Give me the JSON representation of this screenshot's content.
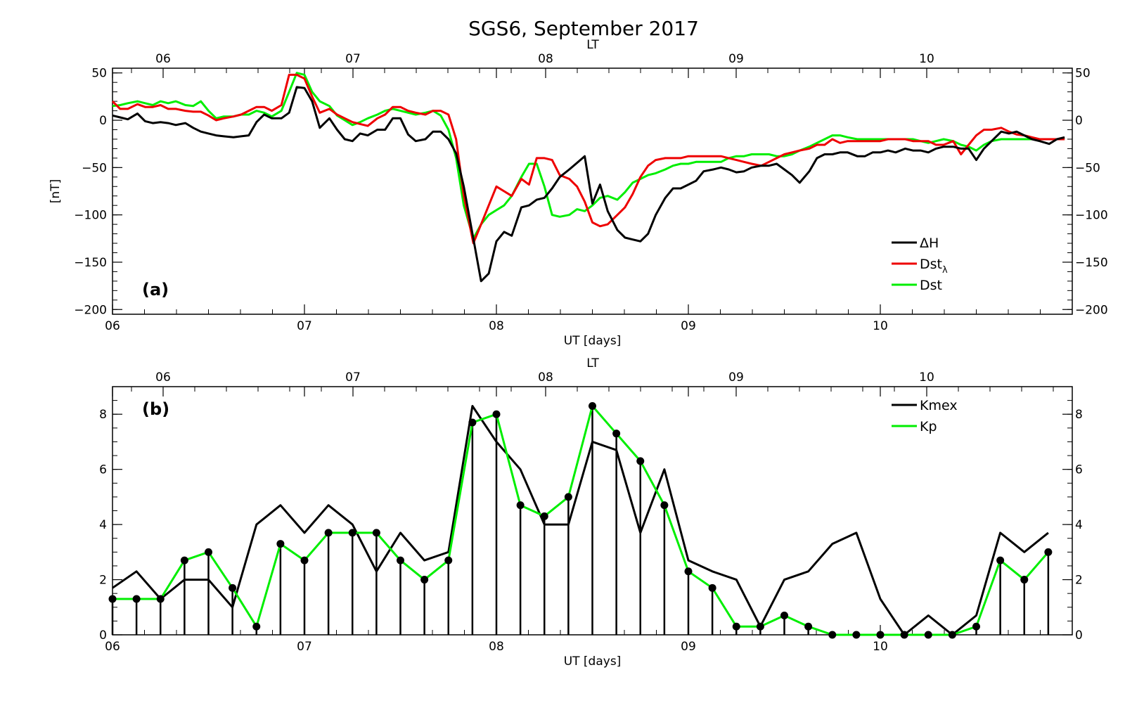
{
  "title": "SGS6, September 2017",
  "chart_data": [
    {
      "type": "line",
      "panel_label": "(a)",
      "xlabel": "UT [days]",
      "top_axis_label": "LT",
      "ylabel": "[nT]",
      "x_unit": "days (UT, September 2017)",
      "xlim": [
        6,
        11
      ],
      "ylim": [
        -205,
        55
      ],
      "x_tick_labels": [
        "06",
        "07",
        "08",
        "09",
        "10"
      ],
      "top_tick_labels": [
        "06",
        "07",
        "08",
        "09",
        "10"
      ],
      "y_tick_labels": [
        "50",
        "0",
        "−50",
        "−100",
        "−150",
        "−200"
      ],
      "y_ticks": [
        50,
        0,
        -50,
        -100,
        -150,
        -200
      ],
      "right_tick_labels": [
        "50",
        "0",
        "−50",
        "−100",
        "−150",
        "−200"
      ],
      "legend_position": "bottom-right",
      "legend": [
        "ΔH",
        "Dst",
        "Dst"
      ],
      "legend_subscript": "λ",
      "series": [
        {
          "name": "ΔH",
          "color": "#000000",
          "x": [
            6.0,
            6.04,
            6.08,
            6.13,
            6.17,
            6.21,
            6.25,
            6.29,
            6.33,
            6.38,
            6.42,
            6.46,
            6.5,
            6.54,
            6.58,
            6.63,
            6.67,
            6.71,
            6.75,
            6.79,
            6.83,
            6.88,
            6.92,
            6.96,
            7.0,
            7.04,
            7.08,
            7.13,
            7.17,
            7.21,
            7.25,
            7.29,
            7.33,
            7.38,
            7.42,
            7.46,
            7.5,
            7.54,
            7.58,
            7.63,
            7.67,
            7.71,
            7.75,
            7.79,
            7.83,
            7.88,
            7.92,
            7.96,
            8.0,
            8.04,
            8.08,
            8.13,
            8.17,
            8.21,
            8.25,
            8.29,
            8.33,
            8.38,
            8.42,
            8.46,
            8.5,
            8.54,
            8.58,
            8.63,
            8.67,
            8.71,
            8.75,
            8.79,
            8.83,
            8.88,
            8.92,
            8.96,
            9.0,
            9.04,
            9.08,
            9.13,
            9.17,
            9.21,
            9.25,
            9.29,
            9.33,
            9.38,
            9.42,
            9.46,
            9.5,
            9.54,
            9.58,
            9.63,
            9.67,
            9.71,
            9.75,
            9.79,
            9.83,
            9.88,
            9.92,
            9.96,
            10.0,
            10.04,
            10.08,
            10.13,
            10.17,
            10.21,
            10.25,
            10.29,
            10.33,
            10.38,
            10.42,
            10.46,
            10.5,
            10.54,
            10.58,
            10.63,
            10.67,
            10.71,
            10.75,
            10.79,
            10.83,
            10.88,
            10.92,
            10.96
          ],
          "y": [
            5,
            3,
            1,
            7,
            -1,
            -3,
            -2,
            -3,
            -5,
            -3,
            -8,
            -12,
            -14,
            -16,
            -17,
            -18,
            -17,
            -16,
            -2,
            6,
            2,
            2,
            8,
            35,
            34,
            20,
            -8,
            2,
            -10,
            -20,
            -22,
            -14,
            -16,
            -10,
            -10,
            2,
            2,
            -15,
            -22,
            -20,
            -12,
            -12,
            -20,
            -35,
            -70,
            -125,
            -170,
            -162,
            -128,
            -118,
            -122,
            -92,
            -90,
            -84,
            -82,
            -72,
            -60,
            -52,
            -45,
            -38,
            -88,
            -68,
            -96,
            -116,
            -124,
            -126,
            -128,
            -120,
            -100,
            -82,
            -72,
            -72,
            -68,
            -64,
            -54,
            -52,
            -50,
            -52,
            -55,
            -54,
            -50,
            -48,
            -48,
            -46,
            -52,
            -58,
            -66,
            -54,
            -40,
            -36,
            -36,
            -34,
            -34,
            -38,
            -38,
            -34,
            -34,
            -32,
            -34,
            -30,
            -32,
            -32,
            -34,
            -30,
            -28,
            -28,
            -30,
            -30,
            -42,
            -30,
            -22,
            -12,
            -14,
            -12,
            -16,
            -20,
            -22,
            -25,
            -20,
            -18
          ]
        },
        {
          "name": "Dstλ",
          "color": "#ee0000",
          "x": [
            6.0,
            6.04,
            6.08,
            6.13,
            6.17,
            6.21,
            6.25,
            6.29,
            6.33,
            6.38,
            6.42,
            6.46,
            6.5,
            6.54,
            6.58,
            6.63,
            6.67,
            6.71,
            6.75,
            6.79,
            6.83,
            6.88,
            6.92,
            6.96,
            7.0,
            7.04,
            7.08,
            7.13,
            7.17,
            7.21,
            7.25,
            7.29,
            7.33,
            7.38,
            7.42,
            7.46,
            7.5,
            7.54,
            7.58,
            7.63,
            7.67,
            7.71,
            7.75,
            7.79,
            7.83,
            7.88,
            7.92,
            7.96,
            8.0,
            8.04,
            8.08,
            8.13,
            8.17,
            8.21,
            8.25,
            8.29,
            8.33,
            8.38,
            8.42,
            8.46,
            8.5,
            8.54,
            8.58,
            8.63,
            8.67,
            8.71,
            8.75,
            8.79,
            8.83,
            8.88,
            8.92,
            8.96,
            9.0,
            9.04,
            9.08,
            9.13,
            9.17,
            9.21,
            9.25,
            9.29,
            9.33,
            9.38,
            9.42,
            9.46,
            9.5,
            9.54,
            9.58,
            9.63,
            9.67,
            9.71,
            9.75,
            9.79,
            9.83,
            9.88,
            9.92,
            9.96,
            10.0,
            10.04,
            10.08,
            10.13,
            10.17,
            10.21,
            10.25,
            10.29,
            10.33,
            10.38,
            10.42,
            10.46,
            10.5,
            10.54,
            10.58,
            10.63,
            10.67,
            10.71,
            10.75,
            10.79,
            10.83,
            10.88,
            10.92,
            10.96
          ],
          "y": [
            20,
            12,
            12,
            17,
            14,
            14,
            16,
            12,
            12,
            10,
            9,
            9,
            5,
            0,
            2,
            4,
            6,
            10,
            14,
            14,
            10,
            16,
            48,
            48,
            44,
            25,
            8,
            12,
            6,
            2,
            -2,
            -4,
            -6,
            2,
            6,
            14,
            14,
            10,
            8,
            6,
            10,
            10,
            6,
            -20,
            -80,
            -130,
            -110,
            -90,
            -70,
            -75,
            -80,
            -62,
            -68,
            -40,
            -40,
            -42,
            -58,
            -62,
            -70,
            -86,
            -108,
            -112,
            -110,
            -100,
            -92,
            -78,
            -60,
            -48,
            -42,
            -40,
            -40,
            -40,
            -38,
            -38,
            -38,
            -38,
            -38,
            -40,
            -42,
            -44,
            -46,
            -48,
            -44,
            -40,
            -36,
            -34,
            -32,
            -30,
            -26,
            -26,
            -20,
            -24,
            -22,
            -22,
            -22,
            -22,
            -22,
            -20,
            -20,
            -20,
            -22,
            -22,
            -22,
            -26,
            -26,
            -22,
            -36,
            -26,
            -16,
            -10,
            -10,
            -8,
            -12,
            -15,
            -16,
            -18,
            -20,
            -20,
            -20,
            -20
          ]
        },
        {
          "name": "Dst",
          "color": "#00ee00",
          "x": [
            6.0,
            6.04,
            6.08,
            6.13,
            6.17,
            6.21,
            6.25,
            6.29,
            6.33,
            6.38,
            6.42,
            6.46,
            6.5,
            6.54,
            6.58,
            6.63,
            6.67,
            6.71,
            6.75,
            6.79,
            6.83,
            6.88,
            6.92,
            6.96,
            7.0,
            7.04,
            7.08,
            7.13,
            7.17,
            7.21,
            7.25,
            7.29,
            7.33,
            7.38,
            7.42,
            7.46,
            7.5,
            7.54,
            7.58,
            7.63,
            7.67,
            7.71,
            7.75,
            7.79,
            7.83,
            7.88,
            7.92,
            7.96,
            8.0,
            8.04,
            8.08,
            8.13,
            8.17,
            8.21,
            8.25,
            8.29,
            8.33,
            8.38,
            8.42,
            8.46,
            8.5,
            8.54,
            8.58,
            8.63,
            8.67,
            8.71,
            8.75,
            8.79,
            8.83,
            8.88,
            8.92,
            8.96,
            9.0,
            9.04,
            9.08,
            9.13,
            9.17,
            9.21,
            9.25,
            9.29,
            9.33,
            9.38,
            9.42,
            9.46,
            9.5,
            9.54,
            9.58,
            9.63,
            9.67,
            9.71,
            9.75,
            9.79,
            9.83,
            9.88,
            9.92,
            9.96,
            10.0,
            10.04,
            10.08,
            10.13,
            10.17,
            10.21,
            10.25,
            10.29,
            10.33,
            10.38,
            10.42,
            10.46,
            10.5,
            10.54,
            10.58,
            10.63,
            10.67,
            10.71,
            10.75,
            10.79,
            10.83,
            10.88,
            10.92,
            10.96
          ],
          "y": [
            15,
            16,
            18,
            20,
            18,
            16,
            20,
            18,
            20,
            16,
            15,
            20,
            10,
            2,
            4,
            4,
            6,
            6,
            10,
            8,
            4,
            10,
            30,
            50,
            48,
            30,
            20,
            15,
            5,
            0,
            -5,
            -2,
            2,
            6,
            10,
            12,
            10,
            8,
            6,
            8,
            10,
            5,
            -10,
            -40,
            -90,
            -125,
            -110,
            -100,
            -95,
            -90,
            -80,
            -60,
            -46,
            -46,
            -70,
            -100,
            -102,
            -100,
            -94,
            -96,
            -90,
            -82,
            -80,
            -84,
            -76,
            -66,
            -62,
            -58,
            -56,
            -52,
            -48,
            -46,
            -46,
            -44,
            -44,
            -44,
            -44,
            -40,
            -38,
            -38,
            -36,
            -36,
            -36,
            -38,
            -38,
            -36,
            -32,
            -28,
            -24,
            -20,
            -16,
            -16,
            -18,
            -20,
            -20,
            -20,
            -20,
            -20,
            -20,
            -20,
            -20,
            -22,
            -24,
            -22,
            -20,
            -22,
            -26,
            -28,
            -32,
            -26,
            -22,
            -20,
            -20,
            -20,
            -20,
            -20,
            -20,
            -20,
            -20,
            -20
          ]
        }
      ]
    },
    {
      "type": "line",
      "panel_label": "(b)",
      "xlabel": "UT [days]",
      "top_axis_label": "LT",
      "xlim": [
        6,
        11
      ],
      "ylim": [
        0,
        9
      ],
      "x_tick_labels": [
        "06",
        "07",
        "08",
        "09",
        "10"
      ],
      "top_tick_labels": [
        "06",
        "07",
        "08",
        "09",
        "10"
      ],
      "y_tick_labels": [
        "0",
        "2",
        "4",
        "6",
        "8"
      ],
      "y_ticks": [
        0,
        2,
        4,
        6,
        8
      ],
      "right_tick_labels": [
        "0",
        "2",
        "4",
        "6",
        "8"
      ],
      "legend_position": "top-right",
      "legend": [
        "Kmex",
        "Kp"
      ],
      "series": [
        {
          "name": "Kmex",
          "color": "#000000",
          "x": [
            6.0,
            6.125,
            6.25,
            6.375,
            6.5,
            6.625,
            6.75,
            6.875,
            7.0,
            7.125,
            7.25,
            7.375,
            7.5,
            7.625,
            7.75,
            7.875,
            8.0,
            8.125,
            8.25,
            8.375,
            8.5,
            8.625,
            8.75,
            8.875,
            9.0,
            9.125,
            9.25,
            9.375,
            9.5,
            9.625,
            9.75,
            9.875,
            10.0,
            10.125,
            10.25,
            10.375,
            10.5,
            10.625,
            10.75,
            10.875
          ],
          "y": [
            1.7,
            2.3,
            1.3,
            2.0,
            2.0,
            1.0,
            4.0,
            4.7,
            3.7,
            4.7,
            4.0,
            2.3,
            3.7,
            2.7,
            3.0,
            8.3,
            7.0,
            6.0,
            4.0,
            4.0,
            7.0,
            6.7,
            3.7,
            6.0,
            2.7,
            2.3,
            2.0,
            0.3,
            2.0,
            2.3,
            3.3,
            3.7,
            1.3,
            0.0,
            0.7,
            0.0,
            0.7,
            3.7,
            3.0,
            3.7
          ]
        },
        {
          "name": "Kp",
          "color": "#00ee00",
          "x": [
            6.0,
            6.125,
            6.25,
            6.375,
            6.5,
            6.625,
            6.75,
            6.875,
            7.0,
            7.125,
            7.25,
            7.375,
            7.5,
            7.625,
            7.75,
            7.875,
            8.0,
            8.125,
            8.25,
            8.375,
            8.5,
            8.625,
            8.75,
            8.875,
            9.0,
            9.125,
            9.25,
            9.375,
            9.5,
            9.625,
            9.75,
            9.875,
            10.0,
            10.125,
            10.25,
            10.375,
            10.5,
            10.625,
            10.75,
            10.875
          ],
          "y": [
            1.3,
            1.3,
            1.3,
            2.7,
            3.0,
            1.7,
            0.3,
            3.3,
            2.7,
            3.7,
            3.7,
            3.7,
            2.7,
            2.0,
            2.7,
            7.7,
            8.0,
            4.7,
            4.3,
            5.0,
            8.3,
            7.3,
            6.3,
            4.7,
            2.3,
            1.7,
            0.3,
            0.3,
            0.7,
            0.3,
            0.0,
            0.0,
            0.0,
            0.0,
            0.0,
            0.0,
            0.3,
            2.7,
            2.0,
            3.0
          ]
        }
      ]
    }
  ]
}
